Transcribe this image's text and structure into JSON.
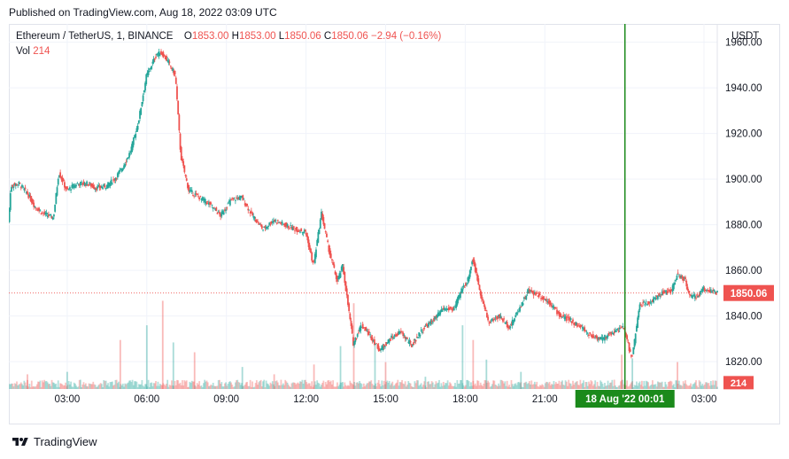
{
  "header": {
    "published": "Published on TradingView.com, Aug 18, 2022 03:09 UTC"
  },
  "legend": {
    "symbol": "Ethereum / TetherUS, 1, BINANCE",
    "open_label": "O",
    "open": "1853.00",
    "high_label": "H",
    "high": "1853.00",
    "low_label": "L",
    "low": "1850.06",
    "close_label": "C",
    "close": "1850.06",
    "change": "−2.94 (−0.16%)",
    "vol_label": "Vol",
    "vol": "214"
  },
  "currency": "USDT",
  "footer": {
    "brand": "TradingView"
  },
  "colors": {
    "up": "#26a69a",
    "down": "#ef5350",
    "crosshair": "#1b8a1b",
    "grid": "#f0f3fa",
    "text": "#131722"
  },
  "chart_data": {
    "type": "candlestick",
    "symbol": "Ethereum / TetherUS",
    "interval": "1",
    "exchange": "BINANCE",
    "ylim": [
      1808,
      1968
    ],
    "y_ticks": [
      1820,
      1840,
      1860,
      1880,
      1900,
      1920,
      1940,
      1960
    ],
    "x_ticks": [
      "03:00",
      "06:00",
      "09:00",
      "12:00",
      "15:00",
      "18:00",
      "21:00",
      "03:00"
    ],
    "x_tick_hours": [
      3,
      6,
      9,
      12,
      15,
      18,
      21,
      27
    ],
    "x_range_hours": [
      0.8,
      27.5
    ],
    "last_price": 1850.06,
    "last_price_label": "1850.06",
    "last_volume_label": "214",
    "crosshair": {
      "label": "18 Aug '22   00:01",
      "hour": 24.02
    },
    "grid": true,
    "price_path": [
      [
        0.8,
        1881
      ],
      [
        0.9,
        1897
      ],
      [
        1.2,
        1898
      ],
      [
        1.5,
        1894
      ],
      [
        1.8,
        1888
      ],
      [
        2.1,
        1885
      ],
      [
        2.5,
        1883
      ],
      [
        2.7,
        1903
      ],
      [
        3.0,
        1895
      ],
      [
        3.4,
        1898
      ],
      [
        3.8,
        1898
      ],
      [
        4.1,
        1896
      ],
      [
        4.5,
        1897
      ],
      [
        4.8,
        1900
      ],
      [
        5.1,
        1905
      ],
      [
        5.4,
        1912
      ],
      [
        5.7,
        1925
      ],
      [
        6.0,
        1945
      ],
      [
        6.2,
        1950
      ],
      [
        6.4,
        1955
      ],
      [
        6.6,
        1955
      ],
      [
        6.9,
        1950
      ],
      [
        7.1,
        1945
      ],
      [
        7.3,
        1910
      ],
      [
        7.6,
        1895
      ],
      [
        8.0,
        1892
      ],
      [
        8.4,
        1889
      ],
      [
        8.8,
        1884
      ],
      [
        9.2,
        1891
      ],
      [
        9.6,
        1892
      ],
      [
        10.0,
        1884
      ],
      [
        10.4,
        1878
      ],
      [
        10.8,
        1882
      ],
      [
        11.2,
        1880
      ],
      [
        11.6,
        1878
      ],
      [
        12.0,
        1877
      ],
      [
        12.3,
        1862
      ],
      [
        12.6,
        1885
      ],
      [
        12.9,
        1868
      ],
      [
        13.2,
        1855
      ],
      [
        13.4,
        1862
      ],
      [
        13.6,
        1845
      ],
      [
        13.8,
        1828
      ],
      [
        14.1,
        1836
      ],
      [
        14.4,
        1832
      ],
      [
        14.8,
        1825
      ],
      [
        15.2,
        1830
      ],
      [
        15.6,
        1833
      ],
      [
        16.0,
        1827
      ],
      [
        16.4,
        1834
      ],
      [
        16.8,
        1838
      ],
      [
        17.2,
        1843
      ],
      [
        17.6,
        1843
      ],
      [
        17.9,
        1852
      ],
      [
        18.1,
        1855
      ],
      [
        18.3,
        1865
      ],
      [
        18.6,
        1850
      ],
      [
        18.9,
        1837
      ],
      [
        19.3,
        1840
      ],
      [
        19.7,
        1835
      ],
      [
        20.0,
        1842
      ],
      [
        20.4,
        1851
      ],
      [
        20.8,
        1849
      ],
      [
        21.2,
        1846
      ],
      [
        21.6,
        1840
      ],
      [
        22.0,
        1838
      ],
      [
        22.4,
        1835
      ],
      [
        22.8,
        1831
      ],
      [
        23.2,
        1830
      ],
      [
        23.6,
        1833
      ],
      [
        24.0,
        1835
      ],
      [
        24.3,
        1821
      ],
      [
        24.6,
        1845
      ],
      [
        25.0,
        1846
      ],
      [
        25.4,
        1850
      ],
      [
        25.8,
        1851
      ],
      [
        26.0,
        1858
      ],
      [
        26.3,
        1856
      ],
      [
        26.5,
        1848
      ],
      [
        26.8,
        1849
      ],
      [
        27.0,
        1852
      ],
      [
        27.3,
        1851
      ],
      [
        27.5,
        1850.06
      ]
    ],
    "volume_spikes": [
      [
        5.0,
        40
      ],
      [
        6.0,
        52
      ],
      [
        6.6,
        72
      ],
      [
        7.0,
        38
      ],
      [
        7.8,
        30
      ],
      [
        9.6,
        18
      ],
      [
        12.3,
        20
      ],
      [
        13.3,
        35
      ],
      [
        13.8,
        70
      ],
      [
        14.6,
        38
      ],
      [
        15.0,
        22
      ],
      [
        17.9,
        52
      ],
      [
        18.3,
        40
      ],
      [
        18.8,
        24
      ],
      [
        23.9,
        28
      ],
      [
        24.3,
        25
      ],
      [
        26.0,
        22
      ],
      [
        20.1,
        14
      ],
      [
        1.5,
        12
      ],
      [
        3.0,
        14
      ],
      [
        10.8,
        12
      ],
      [
        16.5,
        10
      ]
    ]
  }
}
